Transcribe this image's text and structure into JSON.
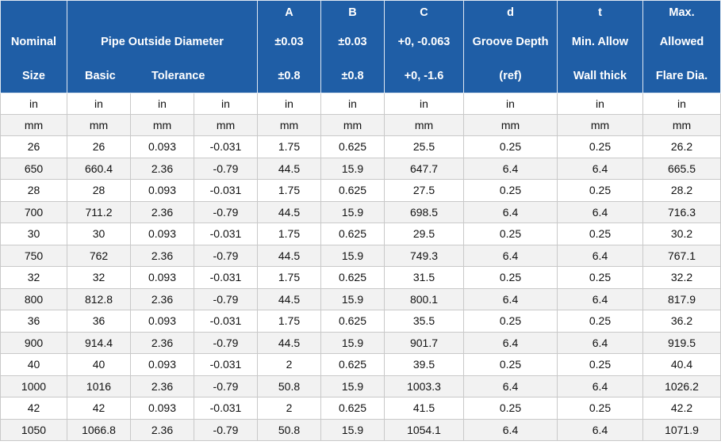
{
  "header": {
    "nominal": [
      "Nominal",
      "Size"
    ],
    "pipe_od": "Pipe Outside Diameter",
    "basic": "Basic",
    "tolerance": "Tolerance",
    "A": [
      "A",
      "±0.03",
      "±0.8"
    ],
    "B": [
      "B",
      "±0.03",
      "±0.8"
    ],
    "C": [
      "C",
      "+0, -0.063",
      "+0, -1.6"
    ],
    "d": [
      "d",
      "Groove Depth",
      "(ref)"
    ],
    "t": [
      "t",
      "Min. Allow",
      "Wall thick"
    ],
    "max": [
      "Max.",
      "Allowed",
      "Flare Dia."
    ]
  },
  "units": [
    [
      "in",
      "in",
      "in",
      "in",
      "in",
      "in",
      "in",
      "in",
      "in",
      "in"
    ],
    [
      "mm",
      "mm",
      "mm",
      "mm",
      "mm",
      "mm",
      "mm",
      "mm",
      "mm",
      "mm"
    ]
  ],
  "rows": [
    [
      "26",
      "26",
      "0.093",
      "-0.031",
      "1.75",
      "0.625",
      "25.5",
      "0.25",
      "0.25",
      "26.2"
    ],
    [
      "650",
      "660.4",
      "2.36",
      "-0.79",
      "44.5",
      "15.9",
      "647.7",
      "6.4",
      "6.4",
      "665.5"
    ],
    [
      "28",
      "28",
      "0.093",
      "-0.031",
      "1.75",
      "0.625",
      "27.5",
      "0.25",
      "0.25",
      "28.2"
    ],
    [
      "700",
      "711.2",
      "2.36",
      "-0.79",
      "44.5",
      "15.9",
      "698.5",
      "6.4",
      "6.4",
      "716.3"
    ],
    [
      "30",
      "30",
      "0.093",
      "-0.031",
      "1.75",
      "0.625",
      "29.5",
      "0.25",
      "0.25",
      "30.2"
    ],
    [
      "750",
      "762",
      "2.36",
      "-0.79",
      "44.5",
      "15.9",
      "749.3",
      "6.4",
      "6.4",
      "767.1"
    ],
    [
      "32",
      "32",
      "0.093",
      "-0.031",
      "1.75",
      "0.625",
      "31.5",
      "0.25",
      "0.25",
      "32.2"
    ],
    [
      "800",
      "812.8",
      "2.36",
      "-0.79",
      "44.5",
      "15.9",
      "800.1",
      "6.4",
      "6.4",
      "817.9"
    ],
    [
      "36",
      "36",
      "0.093",
      "-0.031",
      "1.75",
      "0.625",
      "35.5",
      "0.25",
      "0.25",
      "36.2"
    ],
    [
      "900",
      "914.4",
      "2.36",
      "-0.79",
      "44.5",
      "15.9",
      "901.7",
      "6.4",
      "6.4",
      "919.5"
    ],
    [
      "40",
      "40",
      "0.093",
      "-0.031",
      "2",
      "0.625",
      "39.5",
      "0.25",
      "0.25",
      "40.4"
    ],
    [
      "1000",
      "1016",
      "2.36",
      "-0.79",
      "50.8",
      "15.9",
      "1003.3",
      "6.4",
      "6.4",
      "1026.2"
    ],
    [
      "42",
      "42",
      "0.093",
      "-0.031",
      "2",
      "0.625",
      "41.5",
      "0.25",
      "0.25",
      "42.2"
    ],
    [
      "1050",
      "1066.8",
      "2.36",
      "-0.79",
      "50.8",
      "15.9",
      "1054.1",
      "6.4",
      "6.4",
      "1071.9"
    ]
  ]
}
